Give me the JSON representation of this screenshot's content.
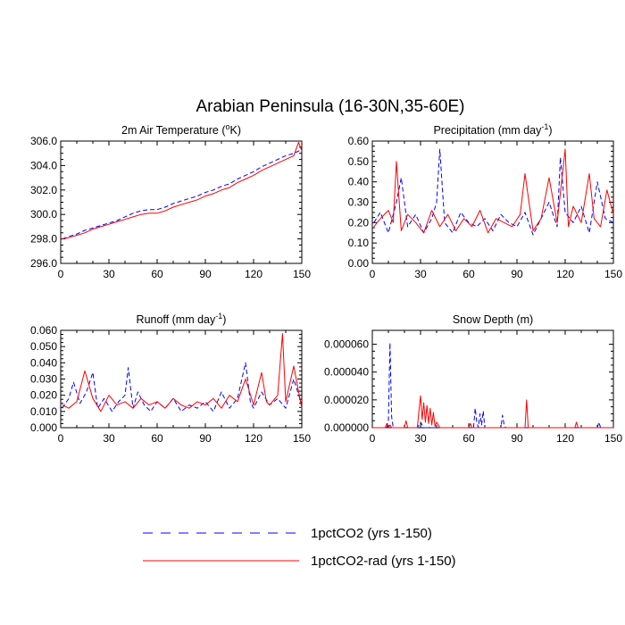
{
  "title": "Arabian Peninsula (16-30N,35-60E)",
  "colors": {
    "series_a": "#0000ff",
    "series_b": "#ff0000",
    "axes": "#000000"
  },
  "legend": [
    {
      "label": "1pctCO2 (yrs 1-150)",
      "style": "dashed",
      "color": "#0000ff"
    },
    {
      "label": "1pctCO2-rad (yrs 1-150)",
      "style": "solid",
      "color": "#ff0000"
    }
  ],
  "panels": [
    {
      "title_text": "2m Air Temperature (",
      "title_sup": "o",
      "title_after": "K)"
    },
    {
      "title_text": "Precipitation (mm day",
      "title_sup": "-1",
      "title_after": ")"
    },
    {
      "title_text": "Runoff (mm day",
      "title_sup": "-1",
      "title_after": ")"
    },
    {
      "title_text": "Snow Depth (m)",
      "title_sup": "",
      "title_after": ""
    }
  ],
  "chart_data": [
    {
      "type": "line",
      "title": "2m Air Temperature (oK)",
      "xlim": [
        0,
        150
      ],
      "ylim": [
        296.0,
        306.0
      ],
      "xticks": [
        0,
        30,
        60,
        90,
        120,
        150
      ],
      "xtick_labels": [
        "0",
        "30",
        "60",
        "90",
        "120",
        "150"
      ],
      "yticks": [
        296.0,
        298.0,
        300.0,
        302.0,
        304.0,
        306.0
      ],
      "ytick_labels": [
        "296.0",
        "298.0",
        "300.0",
        "302.0",
        "304.0",
        "306.0"
      ],
      "series": [
        {
          "name": "1pctCO2 (yrs 1-150)",
          "style": "dashed",
          "color": "#0000ff",
          "x": [
            1,
            5,
            10,
            15,
            20,
            25,
            30,
            35,
            40,
            45,
            50,
            55,
            60,
            65,
            70,
            75,
            80,
            85,
            90,
            95,
            100,
            105,
            110,
            115,
            120,
            125,
            130,
            135,
            140,
            145,
            150
          ],
          "y": [
            298.0,
            298.2,
            298.4,
            298.7,
            298.9,
            299.1,
            299.3,
            299.5,
            299.8,
            300.1,
            300.3,
            300.4,
            300.4,
            300.6,
            300.9,
            301.1,
            301.3,
            301.5,
            301.8,
            302.0,
            302.3,
            302.5,
            302.9,
            303.2,
            303.5,
            303.9,
            304.2,
            304.5,
            304.8,
            305.0,
            305.3
          ]
        },
        {
          "name": "1pctCO2-rad (yrs 1-150)",
          "style": "solid",
          "color": "#ff0000",
          "x": [
            1,
            5,
            10,
            15,
            20,
            25,
            30,
            35,
            40,
            45,
            50,
            55,
            60,
            65,
            70,
            75,
            80,
            85,
            90,
            95,
            100,
            105,
            110,
            115,
            120,
            125,
            130,
            135,
            140,
            145,
            148,
            150
          ],
          "y": [
            298.0,
            298.1,
            298.3,
            298.5,
            298.8,
            299.0,
            299.2,
            299.4,
            299.6,
            299.8,
            300.0,
            300.1,
            300.1,
            300.3,
            300.6,
            300.8,
            301.0,
            301.2,
            301.5,
            301.7,
            302.0,
            302.2,
            302.6,
            302.9,
            303.2,
            303.6,
            303.9,
            304.2,
            304.5,
            304.8,
            305.9,
            305.2
          ]
        }
      ]
    },
    {
      "type": "line",
      "title": "Precipitation (mm day-1)",
      "xlim": [
        0,
        150
      ],
      "ylim": [
        0.0,
        0.6
      ],
      "xticks": [
        0,
        30,
        60,
        90,
        120,
        150
      ],
      "xtick_labels": [
        "0",
        "30",
        "60",
        "90",
        "120",
        "150"
      ],
      "yticks": [
        0.0,
        0.1,
        0.2,
        0.3,
        0.4,
        0.5,
        0.6
      ],
      "ytick_labels": [
        "0.00",
        "0.10",
        "0.20",
        "0.30",
        "0.40",
        "0.50",
        "0.60"
      ],
      "series": [
        {
          "name": "1pctCO2 (yrs 1-150)",
          "style": "dashed",
          "color": "#0000ff",
          "x": [
            1,
            5,
            10,
            15,
            18,
            22,
            27,
            32,
            37,
            40,
            42,
            45,
            50,
            55,
            60,
            65,
            70,
            75,
            80,
            85,
            90,
            95,
            100,
            105,
            110,
            115,
            117,
            120,
            125,
            130,
            135,
            140,
            145,
            150
          ],
          "y": [
            0.2,
            0.25,
            0.15,
            0.3,
            0.42,
            0.18,
            0.24,
            0.15,
            0.22,
            0.3,
            0.56,
            0.2,
            0.15,
            0.25,
            0.2,
            0.18,
            0.22,
            0.16,
            0.24,
            0.2,
            0.18,
            0.25,
            0.14,
            0.22,
            0.3,
            0.18,
            0.52,
            0.25,
            0.2,
            0.28,
            0.15,
            0.4,
            0.22,
            0.2
          ]
        },
        {
          "name": "1pctCO2-rad (yrs 1-150)",
          "style": "solid",
          "color": "#ff0000",
          "x": [
            1,
            5,
            10,
            13,
            15,
            18,
            22,
            27,
            32,
            37,
            42,
            47,
            52,
            57,
            62,
            67,
            72,
            77,
            82,
            87,
            92,
            95,
            100,
            105,
            110,
            115,
            120,
            122,
            125,
            130,
            135,
            138,
            142,
            146,
            150
          ],
          "y": [
            0.18,
            0.22,
            0.26,
            0.2,
            0.5,
            0.16,
            0.24,
            0.2,
            0.15,
            0.26,
            0.18,
            0.24,
            0.16,
            0.22,
            0.18,
            0.26,
            0.15,
            0.22,
            0.2,
            0.18,
            0.24,
            0.44,
            0.16,
            0.22,
            0.42,
            0.2,
            0.56,
            0.18,
            0.28,
            0.2,
            0.44,
            0.22,
            0.18,
            0.36,
            0.24
          ]
        }
      ]
    },
    {
      "type": "line",
      "title": "Runoff (mm day-1)",
      "xlim": [
        0,
        150
      ],
      "ylim": [
        0.0,
        0.06
      ],
      "xticks": [
        0,
        30,
        60,
        90,
        120,
        150
      ],
      "xtick_labels": [
        "0",
        "30",
        "60",
        "90",
        "120",
        "150"
      ],
      "yticks": [
        0.0,
        0.01,
        0.02,
        0.03,
        0.04,
        0.05,
        0.06
      ],
      "ytick_labels": [
        "0.000",
        "0.010",
        "0.020",
        "0.030",
        "0.040",
        "0.050",
        "0.060"
      ],
      "series": [
        {
          "name": "1pctCO2 (yrs 1-150)",
          "style": "dashed",
          "color": "#0000ff",
          "x": [
            1,
            5,
            8,
            12,
            16,
            20,
            23,
            27,
            32,
            36,
            40,
            42,
            45,
            48,
            52,
            56,
            60,
            65,
            70,
            75,
            80,
            85,
            90,
            95,
            100,
            105,
            110,
            115,
            118,
            120,
            125,
            130,
            135,
            140,
            145,
            150
          ],
          "y": [
            0.012,
            0.018,
            0.028,
            0.015,
            0.022,
            0.034,
            0.012,
            0.018,
            0.01,
            0.016,
            0.02,
            0.037,
            0.012,
            0.022,
            0.014,
            0.01,
            0.016,
            0.012,
            0.018,
            0.01,
            0.014,
            0.012,
            0.016,
            0.01,
            0.022,
            0.012,
            0.018,
            0.04,
            0.016,
            0.012,
            0.022,
            0.014,
            0.018,
            0.012,
            0.03,
            0.014
          ]
        },
        {
          "name": "1pctCO2-rad (yrs 1-150)",
          "style": "solid",
          "color": "#ff0000",
          "x": [
            1,
            5,
            10,
            15,
            20,
            25,
            30,
            35,
            40,
            45,
            50,
            55,
            60,
            65,
            70,
            75,
            80,
            85,
            90,
            95,
            100,
            105,
            110,
            115,
            120,
            125,
            128,
            130,
            135,
            138,
            140,
            145,
            150
          ],
          "y": [
            0.014,
            0.012,
            0.016,
            0.035,
            0.018,
            0.01,
            0.02,
            0.014,
            0.016,
            0.012,
            0.018,
            0.014,
            0.016,
            0.012,
            0.018,
            0.014,
            0.012,
            0.016,
            0.014,
            0.018,
            0.012,
            0.02,
            0.016,
            0.03,
            0.014,
            0.034,
            0.016,
            0.014,
            0.02,
            0.058,
            0.016,
            0.038,
            0.012
          ]
        }
      ]
    },
    {
      "type": "line",
      "title": "Snow Depth (m)",
      "xlim": [
        0,
        150
      ],
      "ylim": [
        0.0,
        7e-05
      ],
      "xticks": [
        0,
        30,
        60,
        90,
        120,
        150
      ],
      "xtick_labels": [
        "0",
        "30",
        "60",
        "90",
        "120",
        "150"
      ],
      "yticks": [
        0.0,
        2e-05,
        4e-05,
        6e-05
      ],
      "ytick_labels": [
        "0.000000",
        "0.000020",
        "0.000040",
        "0.000060"
      ],
      "series": [
        {
          "name": "1pctCO2 (yrs 1-150)",
          "style": "dashed",
          "color": "#0000ff",
          "x": [
            0,
            9,
            10,
            11,
            12,
            13,
            20,
            28,
            30,
            32,
            40,
            63,
            64,
            65,
            66,
            67,
            68,
            69,
            70,
            71,
            80,
            81,
            82,
            83,
            140,
            141,
            142,
            150
          ],
          "y": [
            0,
            0,
            5e-06,
            6.1e-05,
            8e-06,
            0,
            0,
            0,
            4e-06,
            0,
            0,
            0,
            1.4e-05,
            4e-06,
            0,
            1e-05,
            2e-06,
            1.2e-05,
            0,
            0,
            0,
            9e-06,
            2e-06,
            0,
            0,
            4e-06,
            0,
            0
          ]
        },
        {
          "name": "1pctCO2-rad (yrs 1-150)",
          "style": "solid",
          "color": "#ff0000",
          "x": [
            0,
            8,
            9,
            10,
            11,
            12,
            16,
            20,
            21,
            22,
            28,
            29,
            30,
            31,
            32,
            33,
            34,
            35,
            36,
            37,
            38,
            39,
            40,
            42,
            60,
            61,
            62,
            95,
            96,
            97,
            126,
            127,
            128,
            150
          ],
          "y": [
            0,
            0,
            3e-06,
            0,
            2e-06,
            0,
            0,
            0,
            5e-06,
            0,
            0,
            1.2e-05,
            2.3e-05,
            6e-06,
            1.8e-05,
            4e-06,
            1.6e-05,
            3e-06,
            1.4e-05,
            2e-06,
            1.1e-05,
            1e-06,
            4e-06,
            0,
            0,
            3e-06,
            0,
            0,
            2e-05,
            0,
            0,
            4e-06,
            0,
            0
          ]
        }
      ]
    }
  ]
}
